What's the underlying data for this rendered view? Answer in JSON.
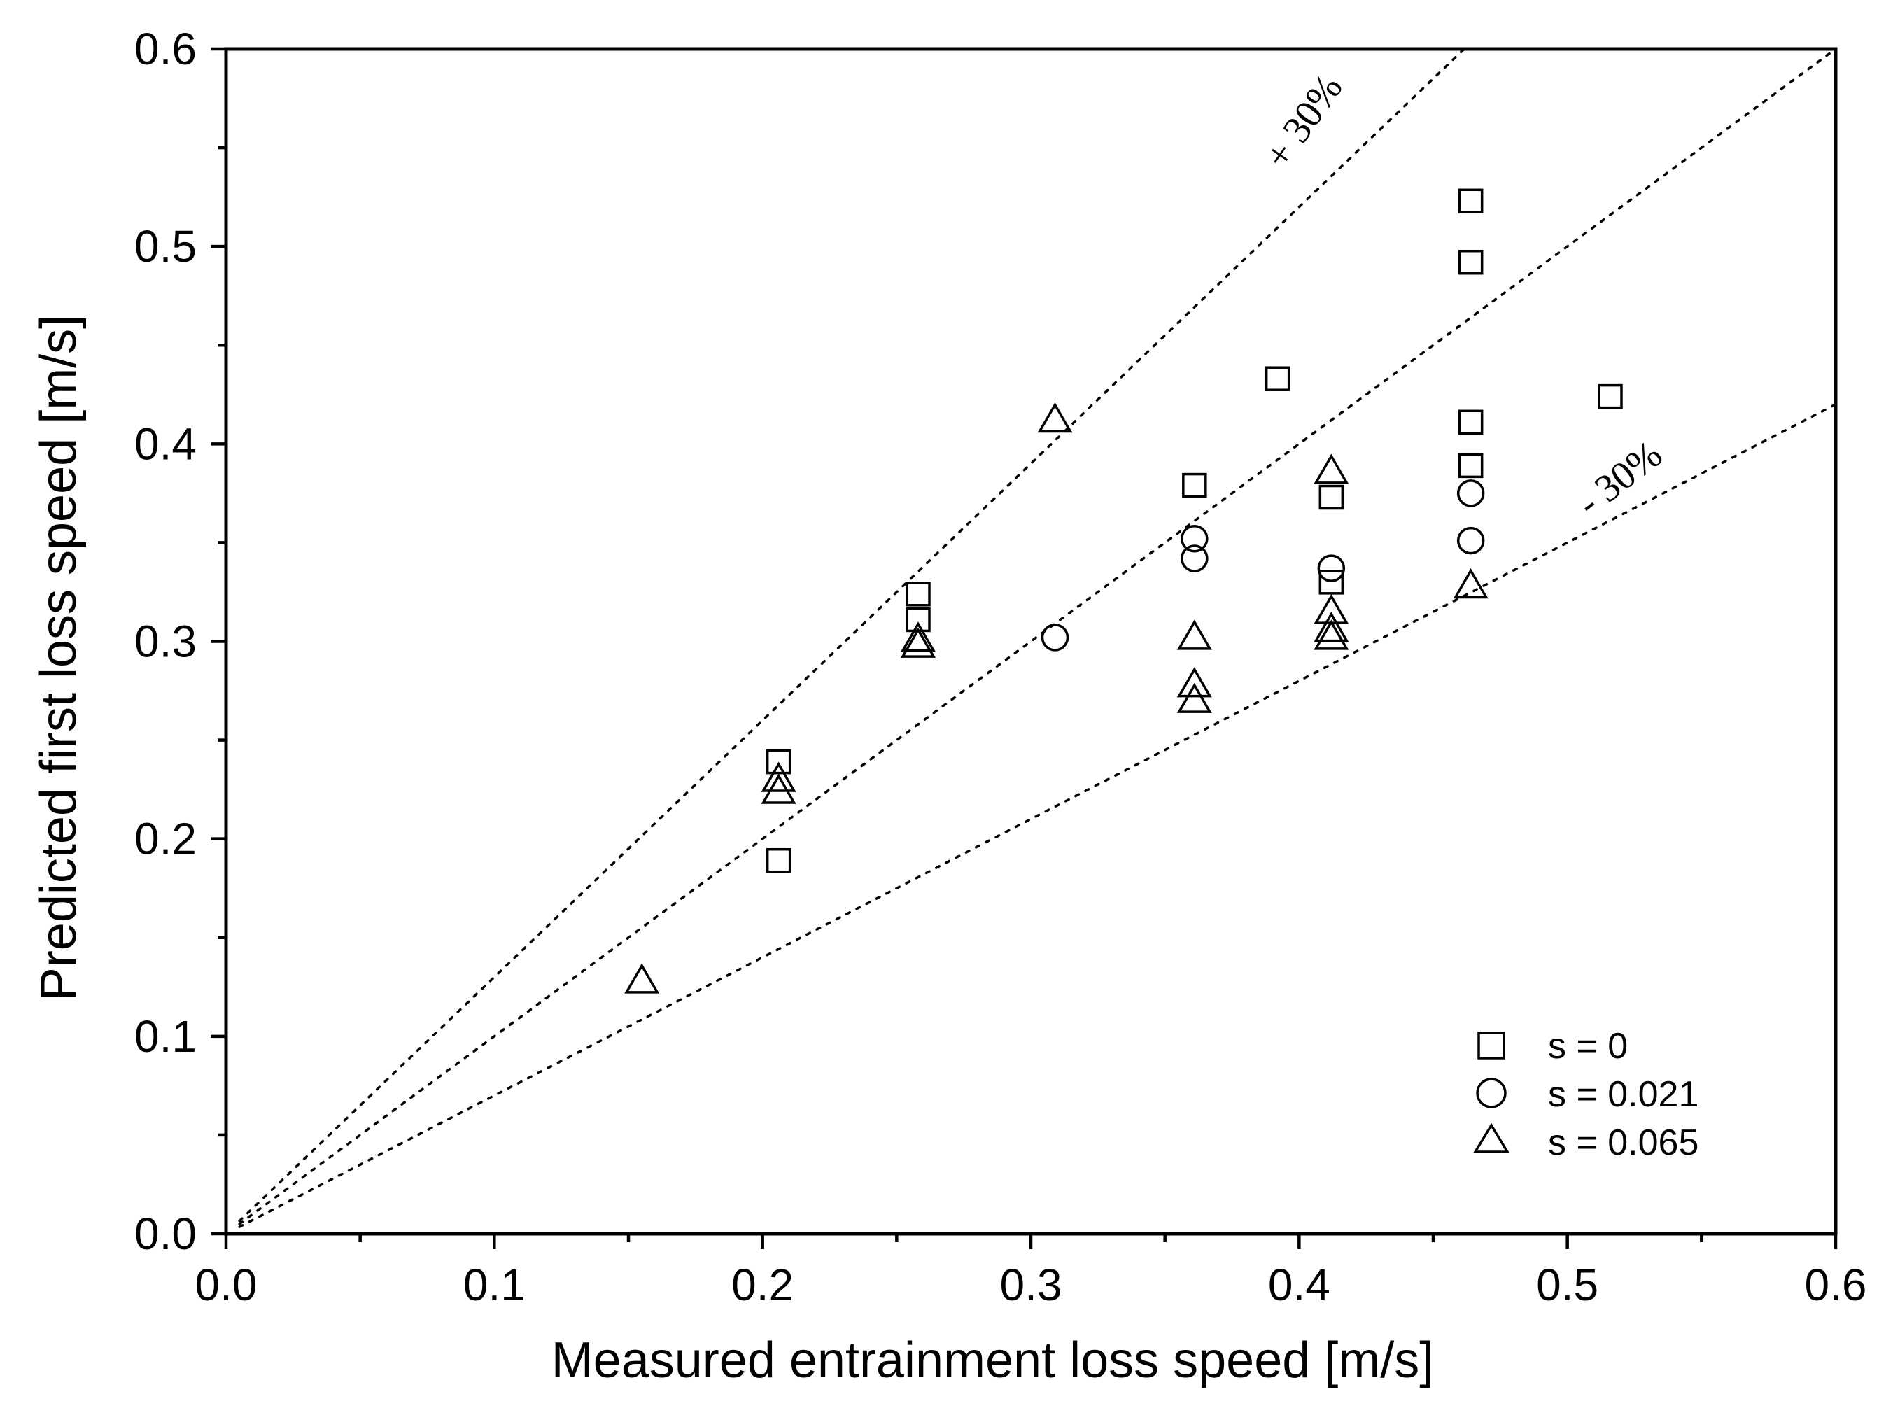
{
  "chart_data": {
    "type": "scatter",
    "xlabel": "Measured entrainment loss speed [m/s]",
    "ylabel": "Predicted first loss speed [m/s]",
    "xlim": [
      0.0,
      0.6
    ],
    "ylim": [
      0.0,
      0.6
    ],
    "x_ticks": [
      "0.0",
      "0.1",
      "0.2",
      "0.3",
      "0.4",
      "0.5",
      "0.6"
    ],
    "y_ticks": [
      "0.0",
      "0.1",
      "0.2",
      "0.3",
      "0.4",
      "0.5",
      "0.6"
    ],
    "legend_position": "bottom-right",
    "series": [
      {
        "name": "s = 0",
        "marker": "square",
        "points": [
          [
            0.206,
            0.239
          ],
          [
            0.206,
            0.189
          ],
          [
            0.258,
            0.324
          ],
          [
            0.258,
            0.311
          ],
          [
            0.361,
            0.379
          ],
          [
            0.392,
            0.433
          ],
          [
            0.412,
            0.373
          ],
          [
            0.412,
            0.33
          ],
          [
            0.464,
            0.523
          ],
          [
            0.464,
            0.492
          ],
          [
            0.464,
            0.411
          ],
          [
            0.464,
            0.389
          ],
          [
            0.516,
            0.424
          ]
        ]
      },
      {
        "name": "s = 0.021",
        "marker": "circle",
        "points": [
          [
            0.309,
            0.302
          ],
          [
            0.361,
            0.352
          ],
          [
            0.361,
            0.342
          ],
          [
            0.412,
            0.337
          ],
          [
            0.464,
            0.375
          ],
          [
            0.464,
            0.351
          ]
        ]
      },
      {
        "name": "s = 0.065",
        "marker": "triangle",
        "points": [
          [
            0.155,
            0.128
          ],
          [
            0.206,
            0.23
          ],
          [
            0.206,
            0.224
          ],
          [
            0.258,
            0.301
          ],
          [
            0.258,
            0.298
          ],
          [
            0.309,
            0.412
          ],
          [
            0.361,
            0.302
          ],
          [
            0.361,
            0.278
          ],
          [
            0.361,
            0.27
          ],
          [
            0.412,
            0.386
          ],
          [
            0.412,
            0.315
          ],
          [
            0.412,
            0.306
          ],
          [
            0.412,
            0.302
          ],
          [
            0.464,
            0.328
          ]
        ]
      }
    ],
    "reference_lines": [
      {
        "name": "+30%",
        "slope": 1.3,
        "label": "+ 30%"
      },
      {
        "name": "1:1",
        "slope": 1.0,
        "label": ""
      },
      {
        "name": "-30%",
        "slope": 0.7,
        "label": "- 30%"
      }
    ]
  }
}
